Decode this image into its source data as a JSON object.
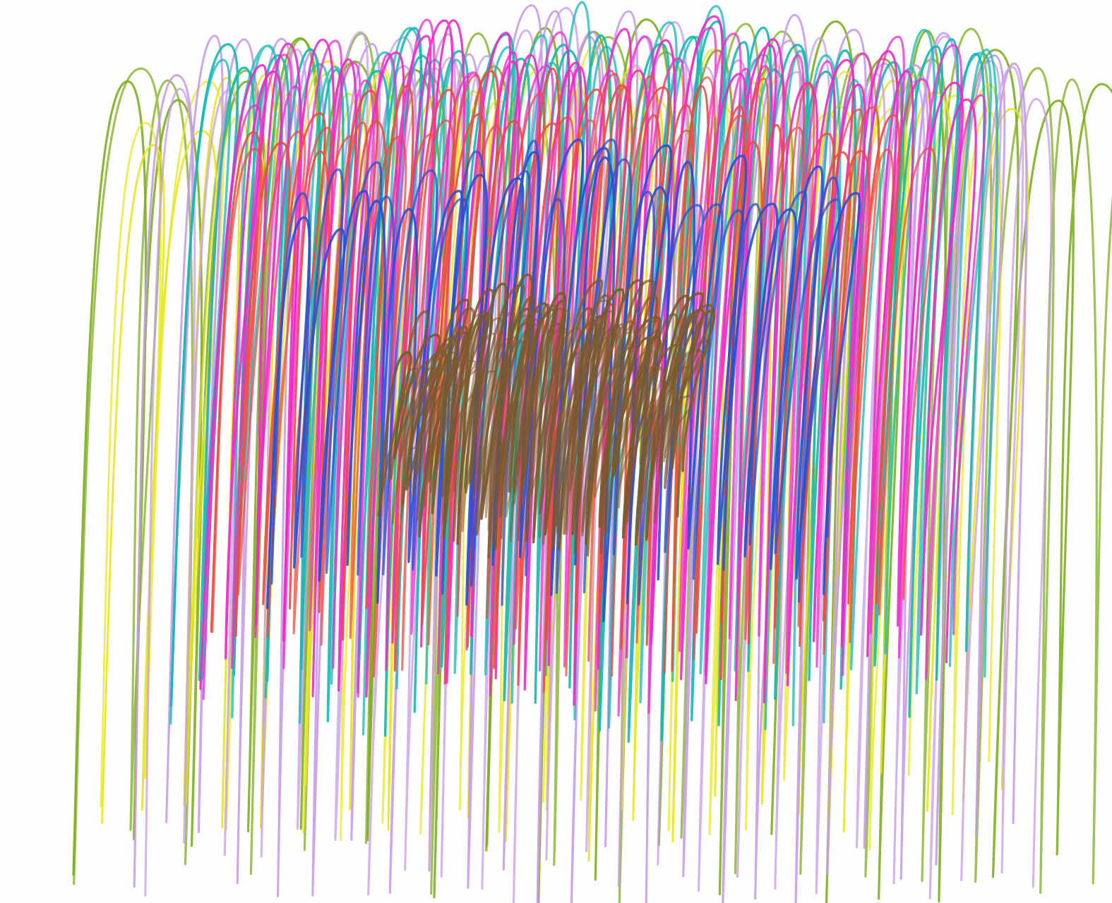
{
  "artwork": {
    "subject": "",
    "palette": {
      "paper": "#fefefe",
      "olive-green": "#7fae1f",
      "lime-yellow": "#e6e619",
      "lavender": "#c79be8",
      "teal": "#14b8b4",
      "magenta": "#f227c9",
      "coral-red": "#f04a3c",
      "royal-blue": "#2450d8",
      "brown": "#7a5a2e"
    },
    "stroke_layers": [
      {
        "color": "olive-green"
      },
      {
        "color": "lime-yellow"
      },
      {
        "color": "lavender"
      },
      {
        "color": "teal"
      },
      {
        "color": "magenta"
      },
      {
        "color": "coral-red"
      },
      {
        "color": "royal-blue"
      },
      {
        "color": "brown"
      }
    ]
  }
}
